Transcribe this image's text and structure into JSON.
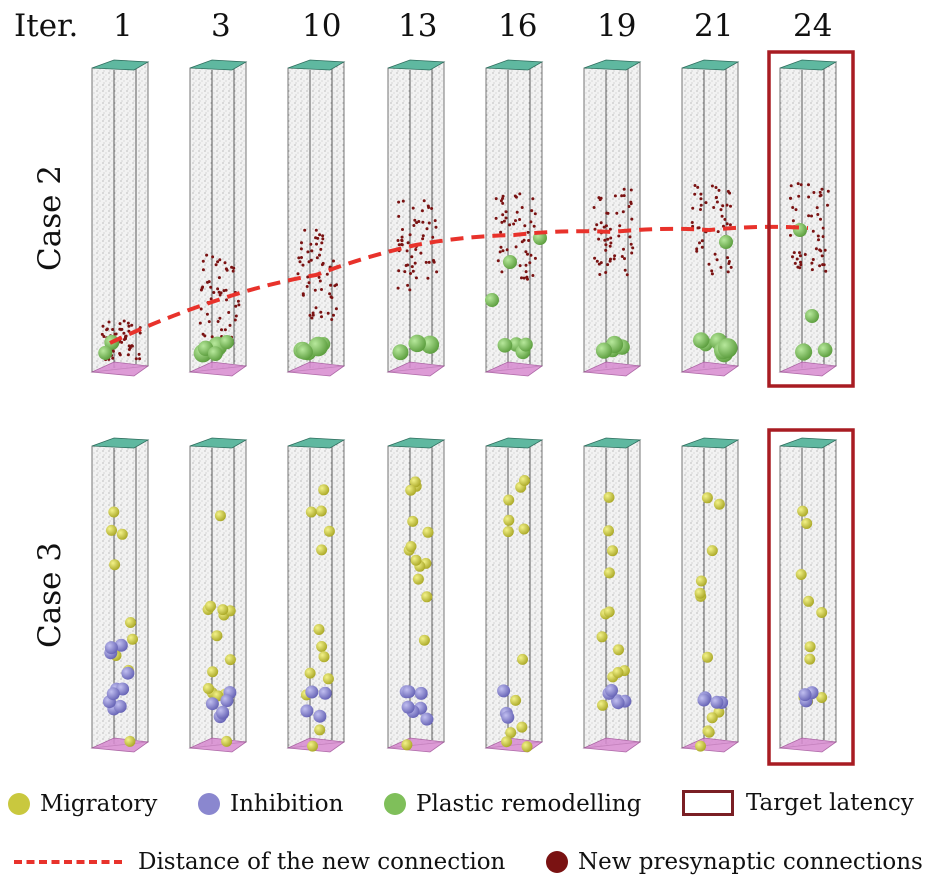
{
  "header": {
    "iter_label": "Iter.",
    "iterations": [
      "1",
      "3",
      "10",
      "13",
      "16",
      "19",
      "21",
      "24"
    ]
  },
  "rows": [
    {
      "label": "Case 2",
      "target_column": "24"
    },
    {
      "label": "Case 3",
      "target_column": "24"
    }
  ],
  "legend": {
    "migratory": "Migratory",
    "inhibition": "Inhibition",
    "plastic": "Plastic remodelling",
    "target": "Target latency",
    "distance": "Distance of the new connection",
    "presynaptic": "New presynaptic connections"
  },
  "colors": {
    "migratory": "#c9c83e",
    "inhibition": "#8a87cf",
    "plastic": "#7fbf5a",
    "target": "#a81c22",
    "distance": "#e8322b",
    "presynaptic": "#7a1212",
    "top_face": "#5fb8a0",
    "bottom_face": "#d88ad0"
  }
}
